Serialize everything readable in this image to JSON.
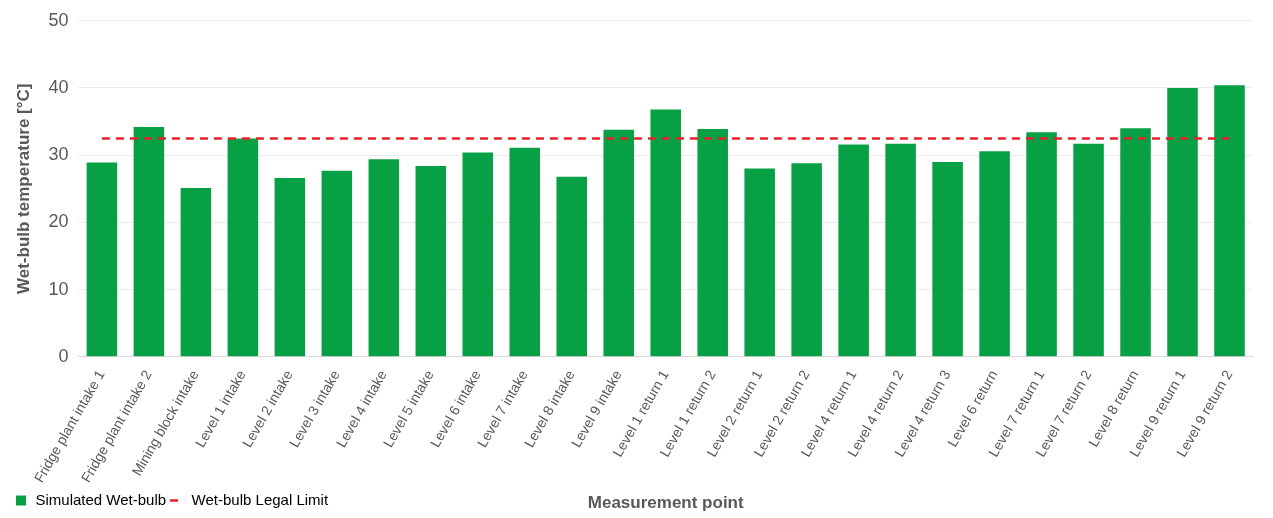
{
  "chart_data": {
    "type": "bar",
    "xlabel": "Measurement point",
    "ylabel": "Wet-bulb temperature [°C]",
    "categories": [
      "Fridge plant intake 1",
      "Fridge plant intake 2",
      "Mining block intake",
      "Level 1 intake",
      "Level 2 intake",
      "Level 3 intake",
      "Level 4 intake",
      "Level 5 intake",
      "Level 6 intake",
      "Level 7 intake",
      "Level 8 intake",
      "Level 9 intake",
      "Level 1 return 1",
      "Level 1 return 2",
      "Level 2 return 1",
      "Level 2 return 2",
      "Level 4 return 1",
      "Level 4 return 2",
      "Level 4 return 3",
      "Level 6 return",
      "Level 7 return 1",
      "Level 7 return 2",
      "Level 8 return",
      "Level 9 return 1",
      "Level 9 return 2"
    ],
    "series": [
      {
        "name": "Simulated Wet-bulb",
        "color": "#08a045",
        "values": [
          28.9,
          34.2,
          25.1,
          32.5,
          26.6,
          27.7,
          29.4,
          28.4,
          30.4,
          31.1,
          26.8,
          33.8,
          36.8,
          33.9,
          28.0,
          28.8,
          31.6,
          31.7,
          29.0,
          30.6,
          33.4,
          31.7,
          34.0,
          40.0,
          40.4
        ]
      },
      {
        "name": "Wet-bulb Legal Limit",
        "type": "line",
        "color": "#e8202a",
        "line_style": "dashed",
        "values": [
          32.5,
          32.5,
          32.5,
          32.5,
          32.5,
          32.5,
          32.5,
          32.5,
          32.5,
          32.5,
          32.5,
          32.5,
          32.5,
          32.5,
          32.5,
          32.5,
          32.5,
          32.5,
          32.5,
          32.5,
          32.5,
          32.5,
          32.5,
          32.5,
          32.5
        ]
      }
    ],
    "ylim": [
      0,
      50
    ],
    "yticks": [
      0,
      10,
      20,
      30,
      40,
      50
    ],
    "grid": "y",
    "legend": "bottom left",
    "marker": "none"
  }
}
